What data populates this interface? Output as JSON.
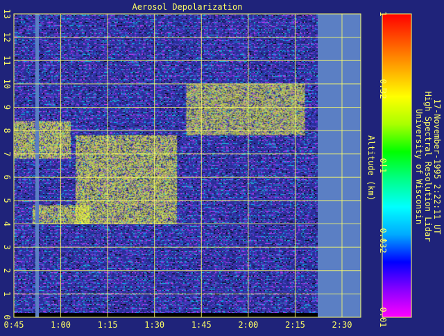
{
  "colors": {
    "background": "#1f237a",
    "axis_text": "#ffff66",
    "grid": "#ffff66",
    "no_data": "#5b7fc4",
    "cloud": "#ffff3a"
  },
  "colorbar": {
    "tick_labels": [
      "1",
      "0.32",
      "0.1",
      "0.032",
      "0.01"
    ],
    "stops": [
      "#ff00ff",
      "#8800ff",
      "#0000ff",
      "#00aaff",
      "#00ffff",
      "#00ff88",
      "#00ff00",
      "#aaff00",
      "#ffff00",
      "#ffaa00",
      "#ff5500",
      "#ff0000"
    ]
  },
  "caption": {
    "line1": "University of Wisconsin",
    "line2": "High Spectral Resolution Lidar",
    "line3": "17-November-1995  2:22:11 UT"
  },
  "chart_data": {
    "type": "heatmap",
    "title": "Aerosol Depolarization",
    "xlabel": "",
    "ylabel": "Altitude (km)",
    "x_tick_labels": [
      "0:45",
      "1:00",
      "1:15",
      "1:30",
      "1:45",
      "2:00",
      "2:15",
      "2:30"
    ],
    "x_ticks_hours": [
      0.75,
      1.0,
      1.25,
      1.5,
      1.75,
      2.0,
      2.25,
      2.5
    ],
    "xlim_hours": [
      0.75,
      2.6
    ],
    "data_end_hours": 2.37,
    "y_tick_labels": [
      "0",
      "1",
      "2",
      "3",
      "4",
      "5",
      "6",
      "7",
      "8",
      "9",
      "10",
      "11",
      "12",
      "13"
    ],
    "ylim": [
      0,
      13
    ],
    "color_scale": "log",
    "clim": [
      0.01,
      1
    ],
    "grid": true,
    "colorbar_position": "right",
    "features": [
      {
        "label": "aerosol layer",
        "time_start_hours": 0.75,
        "time_end_hours": 1.05,
        "alt_bottom_km": 6.8,
        "alt_top_km": 8.4,
        "depolarization": 0.35
      },
      {
        "label": "main cloud",
        "time_start_hours": 1.08,
        "time_end_hours": 1.62,
        "alt_bottom_km": 4.0,
        "alt_top_km": 7.8,
        "depolarization": 0.35
      },
      {
        "label": "lower cloud",
        "time_start_hours": 0.85,
        "time_end_hours": 1.15,
        "alt_bottom_km": 4.0,
        "alt_top_km": 4.8,
        "depolarization": 0.32
      },
      {
        "label": "upper cirrus",
        "time_start_hours": 1.67,
        "time_end_hours": 2.3,
        "alt_bottom_km": 7.8,
        "alt_top_km": 10.0,
        "depolarization": 0.35
      }
    ]
  }
}
